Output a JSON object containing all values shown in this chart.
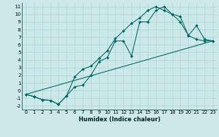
{
  "xlabel": "Humidex (Indice chaleur)",
  "bg_color": "#cce8e8",
  "line_color": "#006666",
  "grid_color": "#aad4d4",
  "line1_x": [
    0,
    1,
    2,
    3,
    4,
    5,
    6,
    7,
    8,
    9,
    10,
    11,
    12,
    13,
    14,
    15,
    16,
    17,
    18,
    19,
    20,
    21,
    22,
    23
  ],
  "line1_y": [
    -0.5,
    -0.8,
    -1.2,
    -1.3,
    -1.8,
    -0.7,
    0.5,
    0.7,
    2.0,
    3.8,
    4.3,
    6.5,
    6.5,
    4.5,
    9.0,
    9.0,
    10.5,
    11.0,
    10.0,
    9.7,
    7.2,
    8.5,
    6.7,
    6.5
  ],
  "line2_x": [
    0,
    1,
    2,
    3,
    4,
    5,
    6,
    7,
    8,
    9,
    10,
    11,
    12,
    13,
    14,
    15,
    16,
    17,
    18,
    19,
    20,
    21,
    22,
    23
  ],
  "line2_y": [
    -0.5,
    -0.8,
    -1.2,
    -1.3,
    -1.8,
    -0.7,
    1.8,
    2.8,
    3.2,
    4.2,
    5.2,
    6.8,
    7.8,
    8.8,
    9.5,
    10.5,
    11.0,
    10.5,
    10.0,
    9.0,
    7.2,
    6.7,
    6.5,
    6.5
  ],
  "line3_x": [
    0,
    23
  ],
  "line3_y": [
    -0.5,
    6.5
  ],
  "xlim": [
    -0.5,
    23.5
  ],
  "ylim": [
    -2.5,
    11.5
  ],
  "xticks": [
    0,
    1,
    2,
    3,
    4,
    5,
    6,
    7,
    8,
    9,
    10,
    11,
    12,
    13,
    14,
    15,
    16,
    17,
    18,
    19,
    20,
    21,
    22,
    23
  ],
  "yticks": [
    -2,
    -1,
    0,
    1,
    2,
    3,
    4,
    5,
    6,
    7,
    8,
    9,
    10,
    11
  ],
  "xlabel_fontsize": 6.0,
  "tick_fontsize": 5.2,
  "linewidth": 0.8,
  "markersize": 2.0
}
